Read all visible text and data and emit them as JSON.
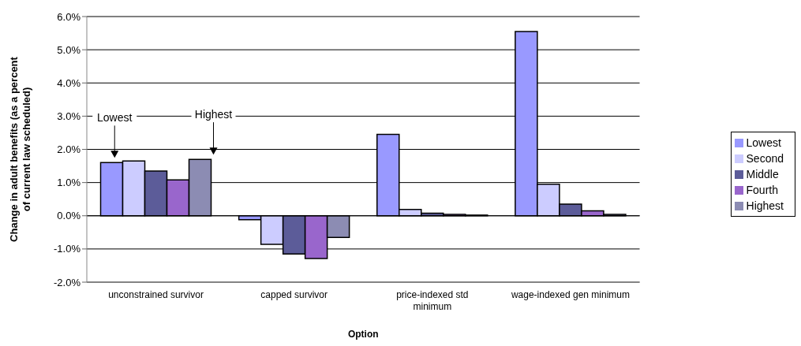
{
  "chart_data": {
    "type": "bar",
    "xlabel": "Option",
    "ylabel": "Change in adult benefits (as a percent of current law scheduled)",
    "categories": [
      "unconstrained survivor",
      "capped survivor",
      "price-indexed std minimum",
      "wage-indexed gen minimum"
    ],
    "series": [
      {
        "name": "Lowest",
        "color": "#9999ff",
        "values": [
          1.6,
          -0.12,
          2.45,
          5.55
        ]
      },
      {
        "name": "Second",
        "color": "#ccccff",
        "values": [
          1.65,
          -0.86,
          0.19,
          0.95
        ]
      },
      {
        "name": "Middle",
        "color": "#5c5c99",
        "values": [
          1.35,
          -1.15,
          0.08,
          0.35
        ]
      },
      {
        "name": "Fourth",
        "color": "#9966cc",
        "values": [
          1.08,
          -1.29,
          0.04,
          0.15
        ]
      },
      {
        "name": "Highest",
        "color": "#8c8cb3",
        "values": [
          1.7,
          -0.65,
          0.02,
          0.04
        ]
      }
    ],
    "ylim": [
      -2,
      6
    ],
    "yticks": [
      {
        "value": -2,
        "label": "-2.0%"
      },
      {
        "value": -1,
        "label": "-1.0%"
      },
      {
        "value": 0,
        "label": "0.0%"
      },
      {
        "value": 1,
        "label": "1.0%"
      },
      {
        "value": 2,
        "label": "2.0%"
      },
      {
        "value": 3,
        "label": "3.0%"
      },
      {
        "value": 4,
        "label": "4.0%"
      },
      {
        "value": 5,
        "label": "5.0%"
      },
      {
        "value": 6,
        "label": "6.0%"
      }
    ],
    "grid": "y",
    "legend": "right",
    "annotations": [
      "Lowest",
      "Highest"
    ]
  }
}
